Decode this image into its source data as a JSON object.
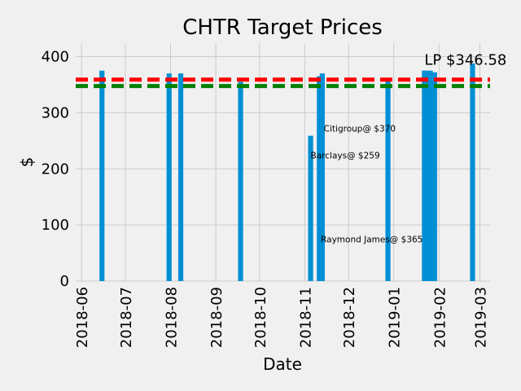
{
  "chart_data": {
    "type": "bar",
    "title": "CHTR Target Prices",
    "xlabel": "Date",
    "ylabel": "$",
    "ylim": [
      0,
      424
    ],
    "xlim": [
      "2018-05-28",
      "2019-03-08"
    ],
    "grid": true,
    "x_ticks": [
      "2018-06",
      "2018-07",
      "2018-08",
      "2018-09",
      "2018-10",
      "2018-11",
      "2018-12",
      "2019-01",
      "2019-02",
      "2019-03"
    ],
    "y_ticks": [
      0,
      100,
      200,
      300,
      400
    ],
    "bar_color": "#008fd5",
    "bars": [
      {
        "date": "2018-06-15",
        "value": 375
      },
      {
        "date": "2018-07-31",
        "value": 370
      },
      {
        "date": "2018-08-08",
        "value": 370
      },
      {
        "date": "2018-09-18",
        "value": 355
      },
      {
        "date": "2018-11-05",
        "value": 259
      },
      {
        "date": "2018-11-11",
        "value": 365
      },
      {
        "date": "2018-11-13",
        "value": 370
      },
      {
        "date": "2018-12-28",
        "value": 357
      },
      {
        "date": "2019-01-22",
        "value": 375
      },
      {
        "date": "2019-01-23",
        "value": 375
      },
      {
        "date": "2019-01-26",
        "value": 375
      },
      {
        "date": "2019-01-29",
        "value": 372
      },
      {
        "date": "2019-02-24",
        "value": 388
      }
    ],
    "reference_lines": [
      {
        "value": 359,
        "color": "#ff0000"
      },
      {
        "value": 347.5,
        "color": "#008000"
      }
    ],
    "annotations": [
      {
        "text": "LP $346.58",
        "date": "2019-01-22",
        "value": 396,
        "size": "large"
      },
      {
        "text": "Citigroup@ $370",
        "date": "2018-11-14",
        "value": 272,
        "size": "small"
      },
      {
        "text": "Barclays@ $259",
        "date": "2018-11-05",
        "value": 224,
        "size": "small"
      },
      {
        "text": "Raymond James@ $365",
        "date": "2018-11-12",
        "value": 75,
        "size": "small"
      }
    ]
  }
}
